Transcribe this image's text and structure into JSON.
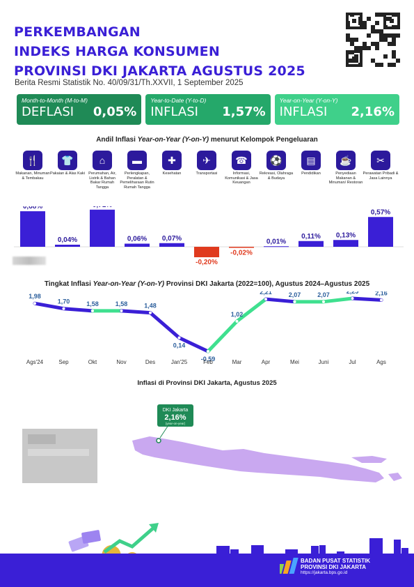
{
  "header": {
    "title_lines": [
      "PERKEMBANGAN",
      "INDEKS HARGA KONSUMEN",
      "PROVINSI DKI JAKARTA AGUSTUS 2025"
    ],
    "subtitle": "Berita Resmi Statistik No. 40/09/31/Th.XXVII, 1 September 2025",
    "qr_icon": "qr-code-icon"
  },
  "kpis": [
    {
      "label": "Month-to-Month (M-to-M)",
      "kind": "DEFLASI",
      "value": "0,05%",
      "color": "#1f8a56"
    },
    {
      "label": "Year-to-Date (Y-to-D)",
      "kind": "INFLASI",
      "value": "1,57%",
      "color": "#25a86a"
    },
    {
      "label": "Year-on-Year (Y-on-Y)",
      "kind": "INFLASI",
      "value": "2,16%",
      "color": "#3fd08a"
    }
  ],
  "andil": {
    "title_pre": "Andil Inflasi ",
    "title_em": "Year-on-Year (Y-on-Y)",
    "title_post": " menurut Kelompok Pengeluaran"
  },
  "groups": [
    {
      "name": "Makanan, Minuman & Tembakau",
      "icon": "food-icon"
    },
    {
      "name": "Pakaian & Alas Kaki",
      "icon": "shirt-icon"
    },
    {
      "name": "Perumahan, Air, Listrik & Bahan Bakar Rumah Tangga",
      "icon": "house-icon"
    },
    {
      "name": "Perlengkapan, Peralatan & Pemeliharaan Rutin Rumah Tangga",
      "icon": "sofa-icon"
    },
    {
      "name": "Kesehatan",
      "icon": "health-icon"
    },
    {
      "name": "Transportasi",
      "icon": "plane-icon"
    },
    {
      "name": "Informasi, Komunikasi & Jasa Keuangan",
      "icon": "phone-icon"
    },
    {
      "name": "Rekreasi, Olahraga & Budaya",
      "icon": "sport-icon"
    },
    {
      "name": "Pendidikan",
      "icon": "book-icon"
    },
    {
      "name": "Penyediaan Makanan & Minuman/ Restoran",
      "icon": "restaurant-icon"
    },
    {
      "name": "Perawatan Pribadi & Jasa Lainnya",
      "icon": "tools-icon"
    }
  ],
  "trend": {
    "title_pre": "Tingkat Inflasi ",
    "title_em": "Year-on-Year (Y-on-Y)",
    "title_post": " Provinsi DKI Jakarta (2022=100), Agustus 2024–Agustus 2025"
  },
  "map": {
    "title": "Inflasi di Provinsi DKI Jakarta, Agustus 2025",
    "callout_name": "DKI Jakarta",
    "callout_value": "2,16%",
    "callout_note": "(year-on-year)"
  },
  "footer": {
    "org1": "BADAN PUSAT STATISTIK",
    "org2": "PROVINSI DKI JAKARTA",
    "url": "https://jakarta.bps.go.id",
    "logo_icon": "bps-logo-icon"
  },
  "colors": {
    "primary": "#3a1fd6",
    "negative": "#e03a1e",
    "line_green": "#3fe08f",
    "map": "#c9a8f0"
  },
  "chart_data": [
    {
      "type": "bar",
      "categories": [
        "Makanan, Minuman & Tembakau",
        "Pakaian & Alas Kaki",
        "Perumahan, Air, Listrik & Bahan Bakar Rumah Tangga",
        "Perlengkapan, Peralatan & Pemeliharaan Rutin Rumah Tangga",
        "Kesehatan",
        "Transportasi",
        "Informasi, Komunikasi & Jasa Keuangan",
        "Rekreasi, Olahraga & Budaya",
        "Pendidikan",
        "Penyediaan Makanan & Minuman/ Restoran",
        "Perawatan Pribadi & Jasa Lainnya"
      ],
      "values": [
        0.68,
        0.04,
        0.71,
        0.06,
        0.07,
        -0.2,
        -0.02,
        0.01,
        0.11,
        0.13,
        0.57
      ],
      "labels": [
        "0,68%",
        "0,04%",
        "0,71%",
        "0,06%",
        "0,07%",
        "-0,20%",
        "-0,02%",
        "0,01%",
        "0,11%",
        "0,13%",
        "0,57%"
      ]
    },
    {
      "type": "line",
      "x": [
        "Ags'24",
        "Sep",
        "Okt",
        "Nov",
        "Des",
        "Jan'25",
        "Feb",
        "Mar",
        "Apr",
        "Mei",
        "Juni",
        "Jul",
        "Ags"
      ],
      "values": [
        1.98,
        1.7,
        1.58,
        1.58,
        1.48,
        0.14,
        -0.59,
        1.02,
        2.21,
        2.07,
        2.07,
        2.25,
        2.16
      ],
      "labels": [
        "1,98",
        "1,70",
        "1,58",
        "1,58",
        "1,48",
        "0,14",
        "-0,59",
        "1,02",
        "2,21",
        "2,07",
        "2,07",
        "2,25",
        "2,16"
      ]
    }
  ]
}
